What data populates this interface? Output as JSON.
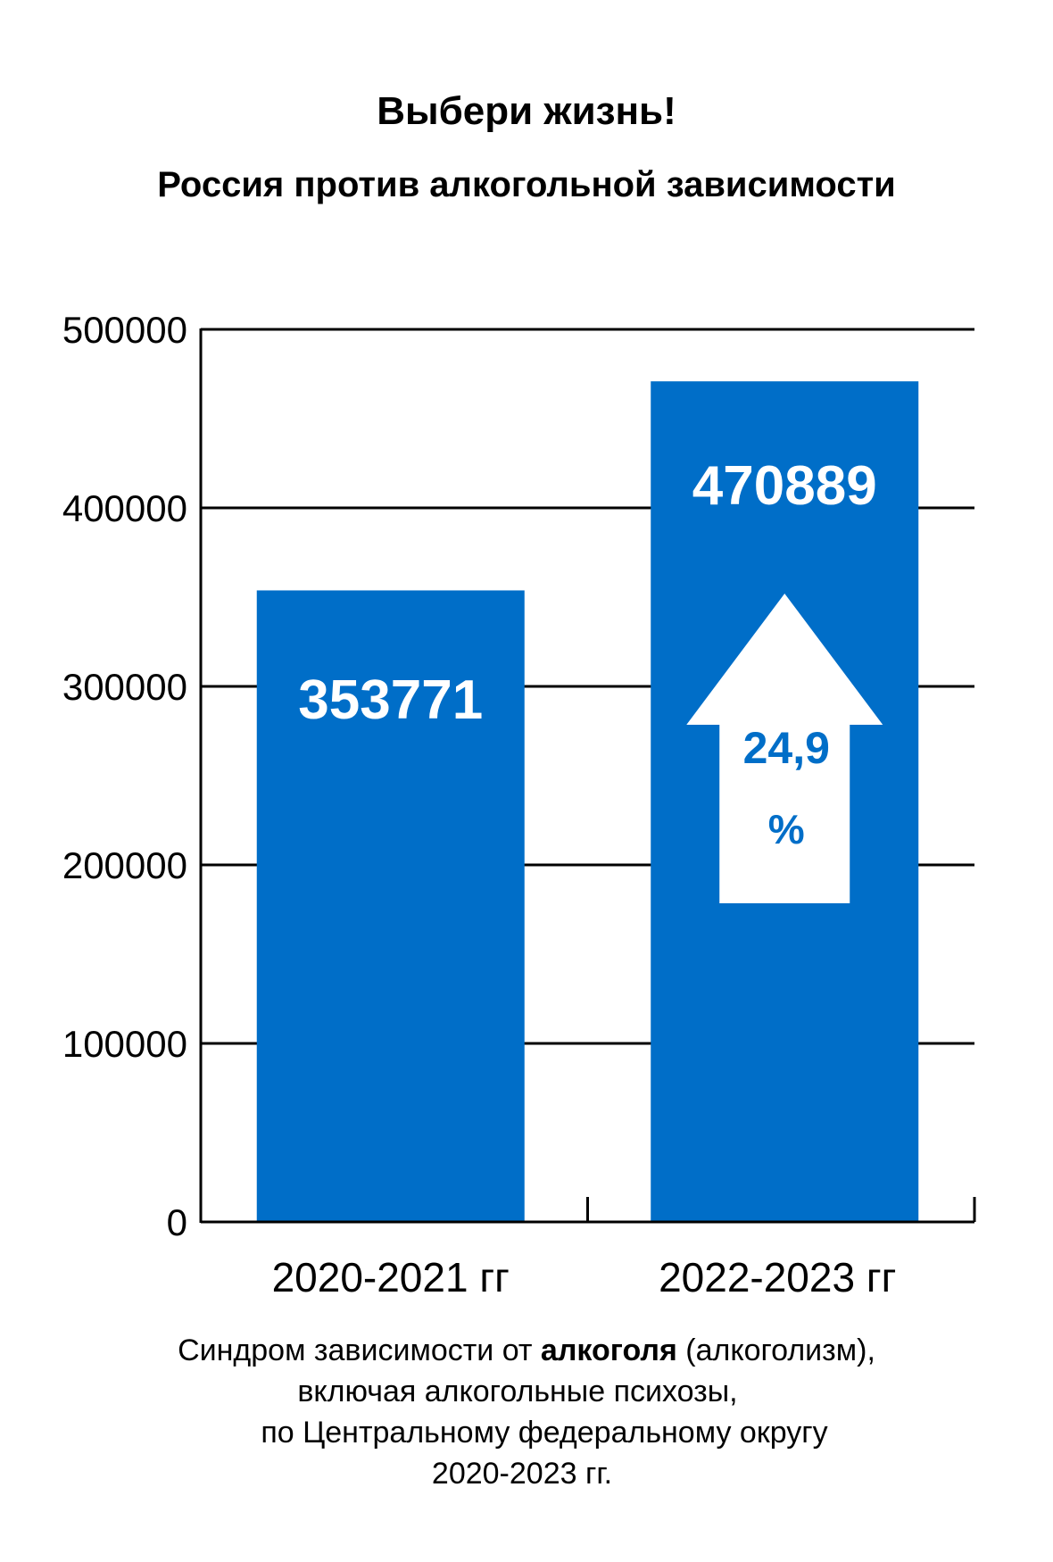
{
  "title": "Выбери жизнь!",
  "subtitle": "Россия против алкогольной зависимости",
  "chart_data": {
    "type": "bar",
    "categories": [
      "2020-2021 гг",
      "2022-2023 гг"
    ],
    "values": [
      353771,
      470889
    ],
    "value_labels": [
      "353771",
      "470889"
    ],
    "ylim": [
      0,
      500000
    ],
    "yticks": [
      "0",
      "100000",
      "200000",
      "300000",
      "400000",
      "500000"
    ],
    "grid": true,
    "bar_color": "#006ec8",
    "annotation": {
      "type": "up-arrow",
      "value_text": "24,9",
      "unit_text": "%",
      "color": "#006ec8"
    }
  },
  "caption": {
    "line1_pre": "Синдром зависимости  от ",
    "line1_bold": "алкоголя",
    "line1_post": " (алкоголизм),",
    "line2": "включая алкогольные психозы,",
    "line3": "по Центральному федеральному округу",
    "line4": "2020-2023 гг."
  }
}
